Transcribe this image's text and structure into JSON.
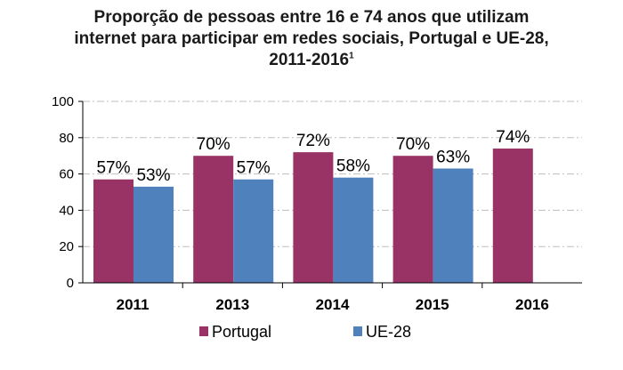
{
  "chart_data": {
    "type": "bar",
    "title_lines": [
      "Proporção de pessoas entre 16 e 74 anos que utilizam",
      "internet para participar em redes sociais, Portugal e UE-28,",
      "2011-2016"
    ],
    "title_superscript": "1",
    "categories": [
      "2011",
      "2013",
      "2014",
      "2015",
      "2016"
    ],
    "series": [
      {
        "name": "Portugal",
        "color": "#993366",
        "values": [
          57,
          70,
          72,
          70,
          74
        ],
        "labels": [
          "57%",
          "70%",
          "72%",
          "70%",
          "74%"
        ]
      },
      {
        "name": "UE-28",
        "color": "#4f81bd",
        "values": [
          53,
          57,
          58,
          63,
          null
        ],
        "labels": [
          "53%",
          "57%",
          "58%",
          "63%",
          ""
        ]
      }
    ],
    "ylim": [
      0,
      100
    ],
    "yticks": [
      0,
      20,
      40,
      60,
      80,
      100
    ],
    "grid": "dash-dot horizontal",
    "legend": "bottom-center"
  }
}
